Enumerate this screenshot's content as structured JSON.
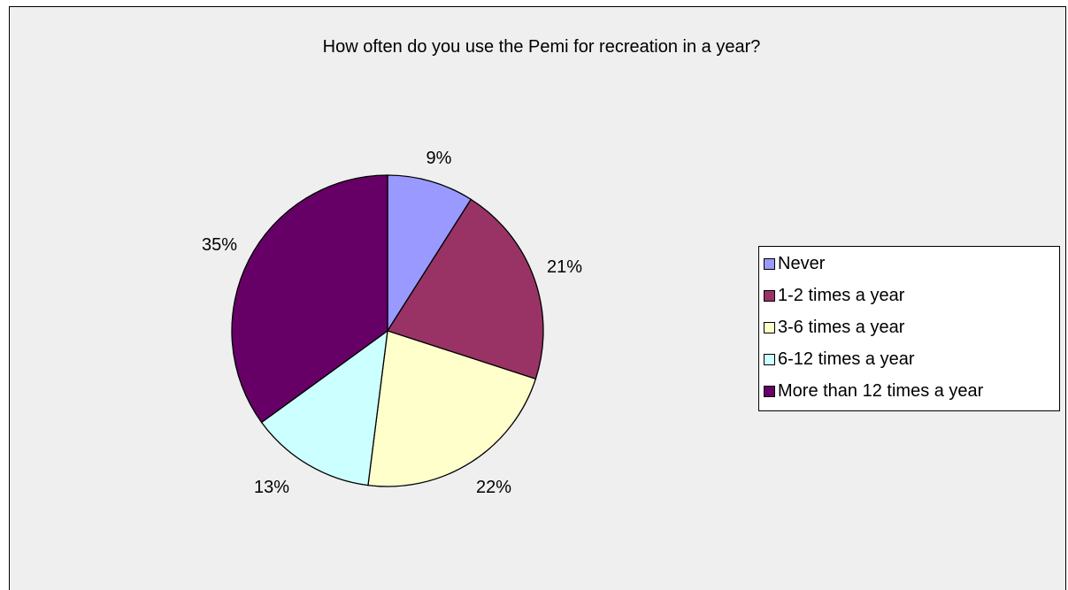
{
  "chart_data": {
    "type": "pie",
    "title": "How often do you use the Pemi for recreation in a year?",
    "categories": [
      "Never",
      "1-2 times a year",
      "3-6 times a year",
      "6-12 times a year",
      "More than 12 times a year"
    ],
    "values": [
      9,
      21,
      22,
      13,
      35
    ],
    "data_labels": [
      "9%",
      "21%",
      "22%",
      "13%",
      "35%"
    ],
    "colors": [
      "#9999ff",
      "#993366",
      "#ffffcc",
      "#ccffff",
      "#660066"
    ],
    "legend": {
      "position": "right",
      "entries": [
        "Never",
        "1-2 times a year",
        "3-6 times a year",
        "6-12 times a year",
        "More than 12 times a year"
      ]
    },
    "background": "#efefef"
  }
}
